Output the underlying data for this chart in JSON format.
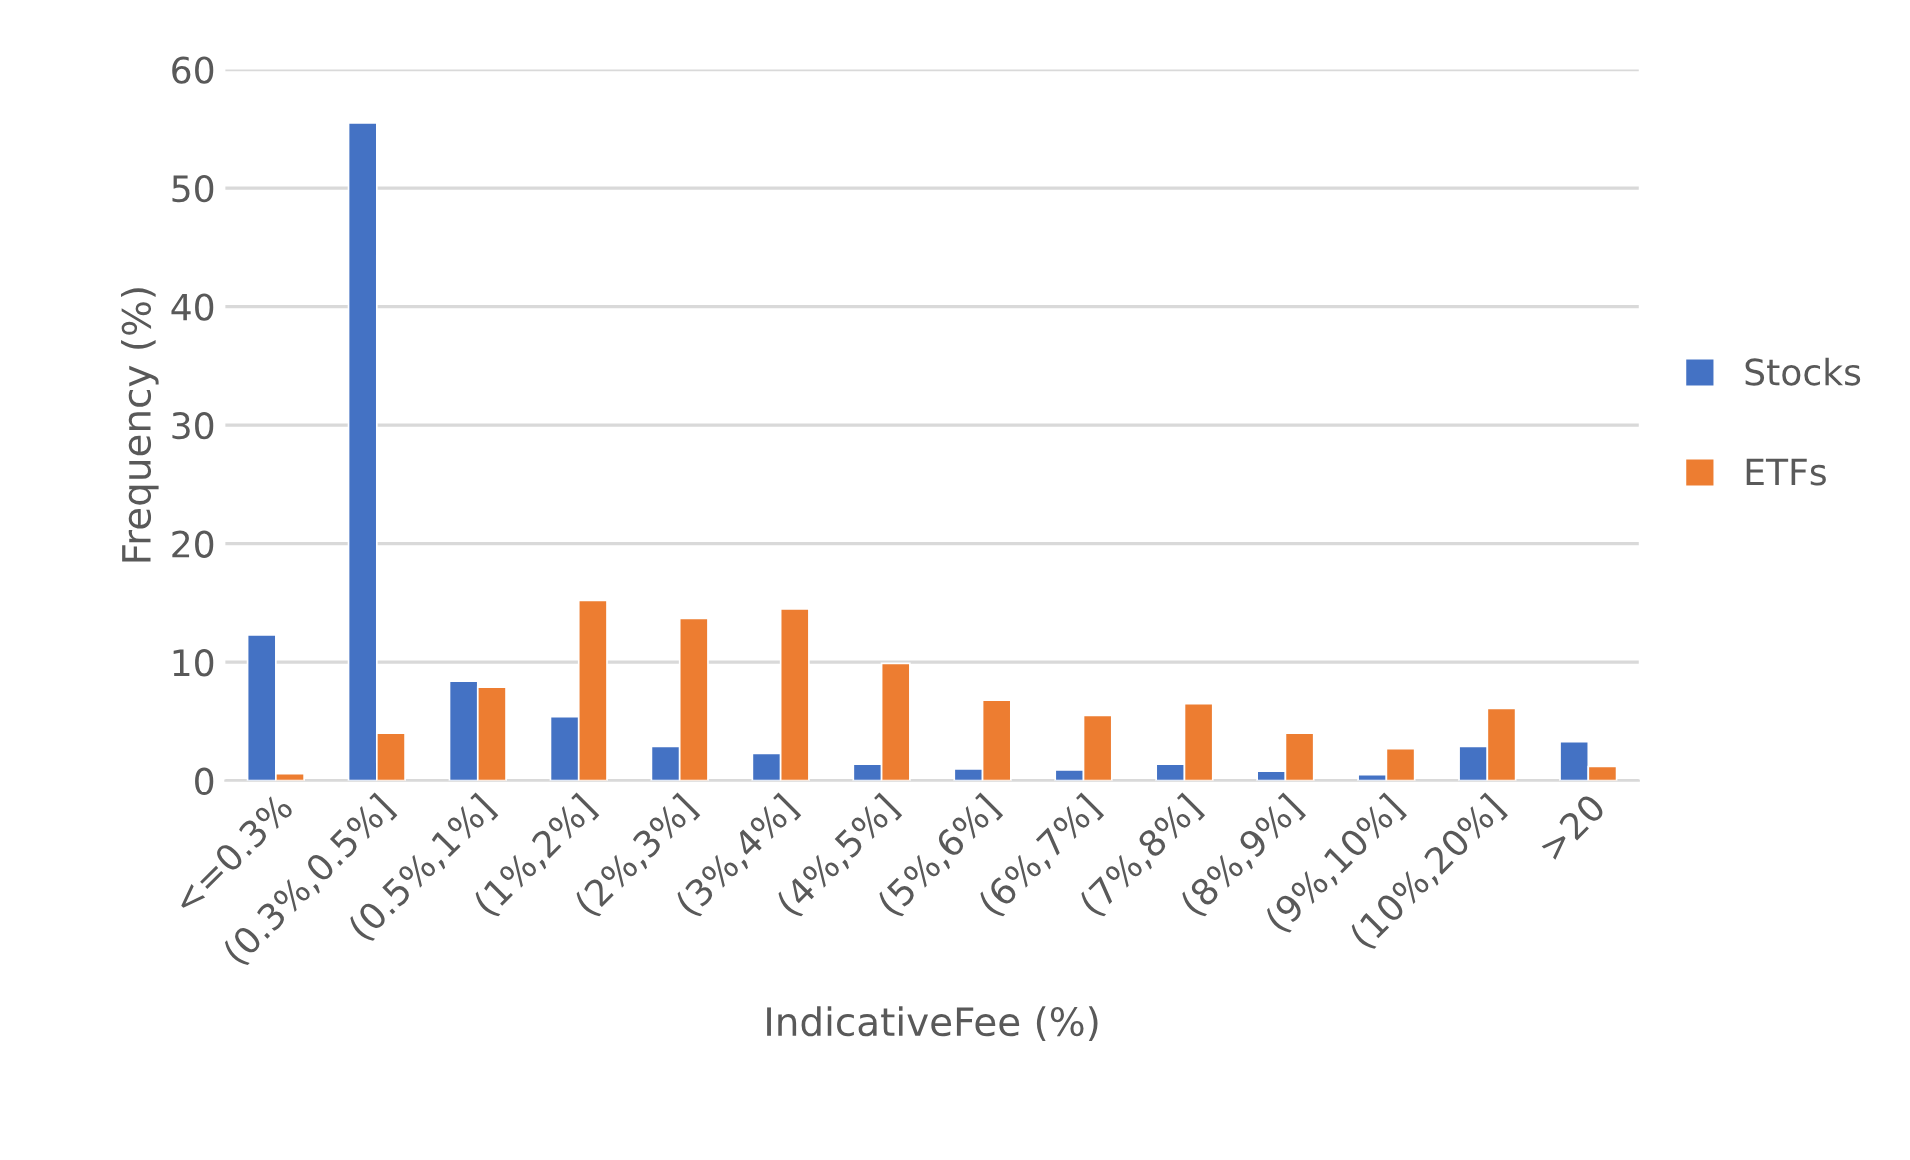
{
  "chart_data": {
    "type": "bar",
    "xlabel": "IndicativeFee (%)",
    "ylabel": "Frequency (%)",
    "categories": [
      "<=0.3%",
      "(0.3%,0.5%]",
      "(0.5%,1%]",
      "(1%,2%]",
      "(2%,3%]",
      "(3%,4%]",
      "(4%,5%]",
      "(5%,6%]",
      "(6%,7%]",
      "(7%,8%]",
      "(8%,9%]",
      "(9%,10%]",
      "(10%,20%]",
      ">20"
    ],
    "series": [
      {
        "name": "Stocks",
        "color": "#4472c4",
        "values": [
          12.3,
          55.5,
          8.4,
          5.4,
          2.9,
          2.3,
          1.4,
          1.0,
          0.9,
          1.4,
          0.8,
          0.5,
          2.9,
          3.3
        ]
      },
      {
        "name": "ETFs",
        "color": "#ed7d31",
        "values": [
          0.6,
          4.0,
          7.9,
          15.2,
          13.7,
          14.5,
          9.9,
          6.8,
          5.5,
          6.5,
          4.0,
          2.7,
          6.1,
          1.2
        ]
      }
    ],
    "ylim": [
      0,
      60
    ],
    "yticks": [
      0,
      10,
      20,
      30,
      40,
      50,
      60
    ],
    "grid": "y",
    "legend": "right"
  }
}
